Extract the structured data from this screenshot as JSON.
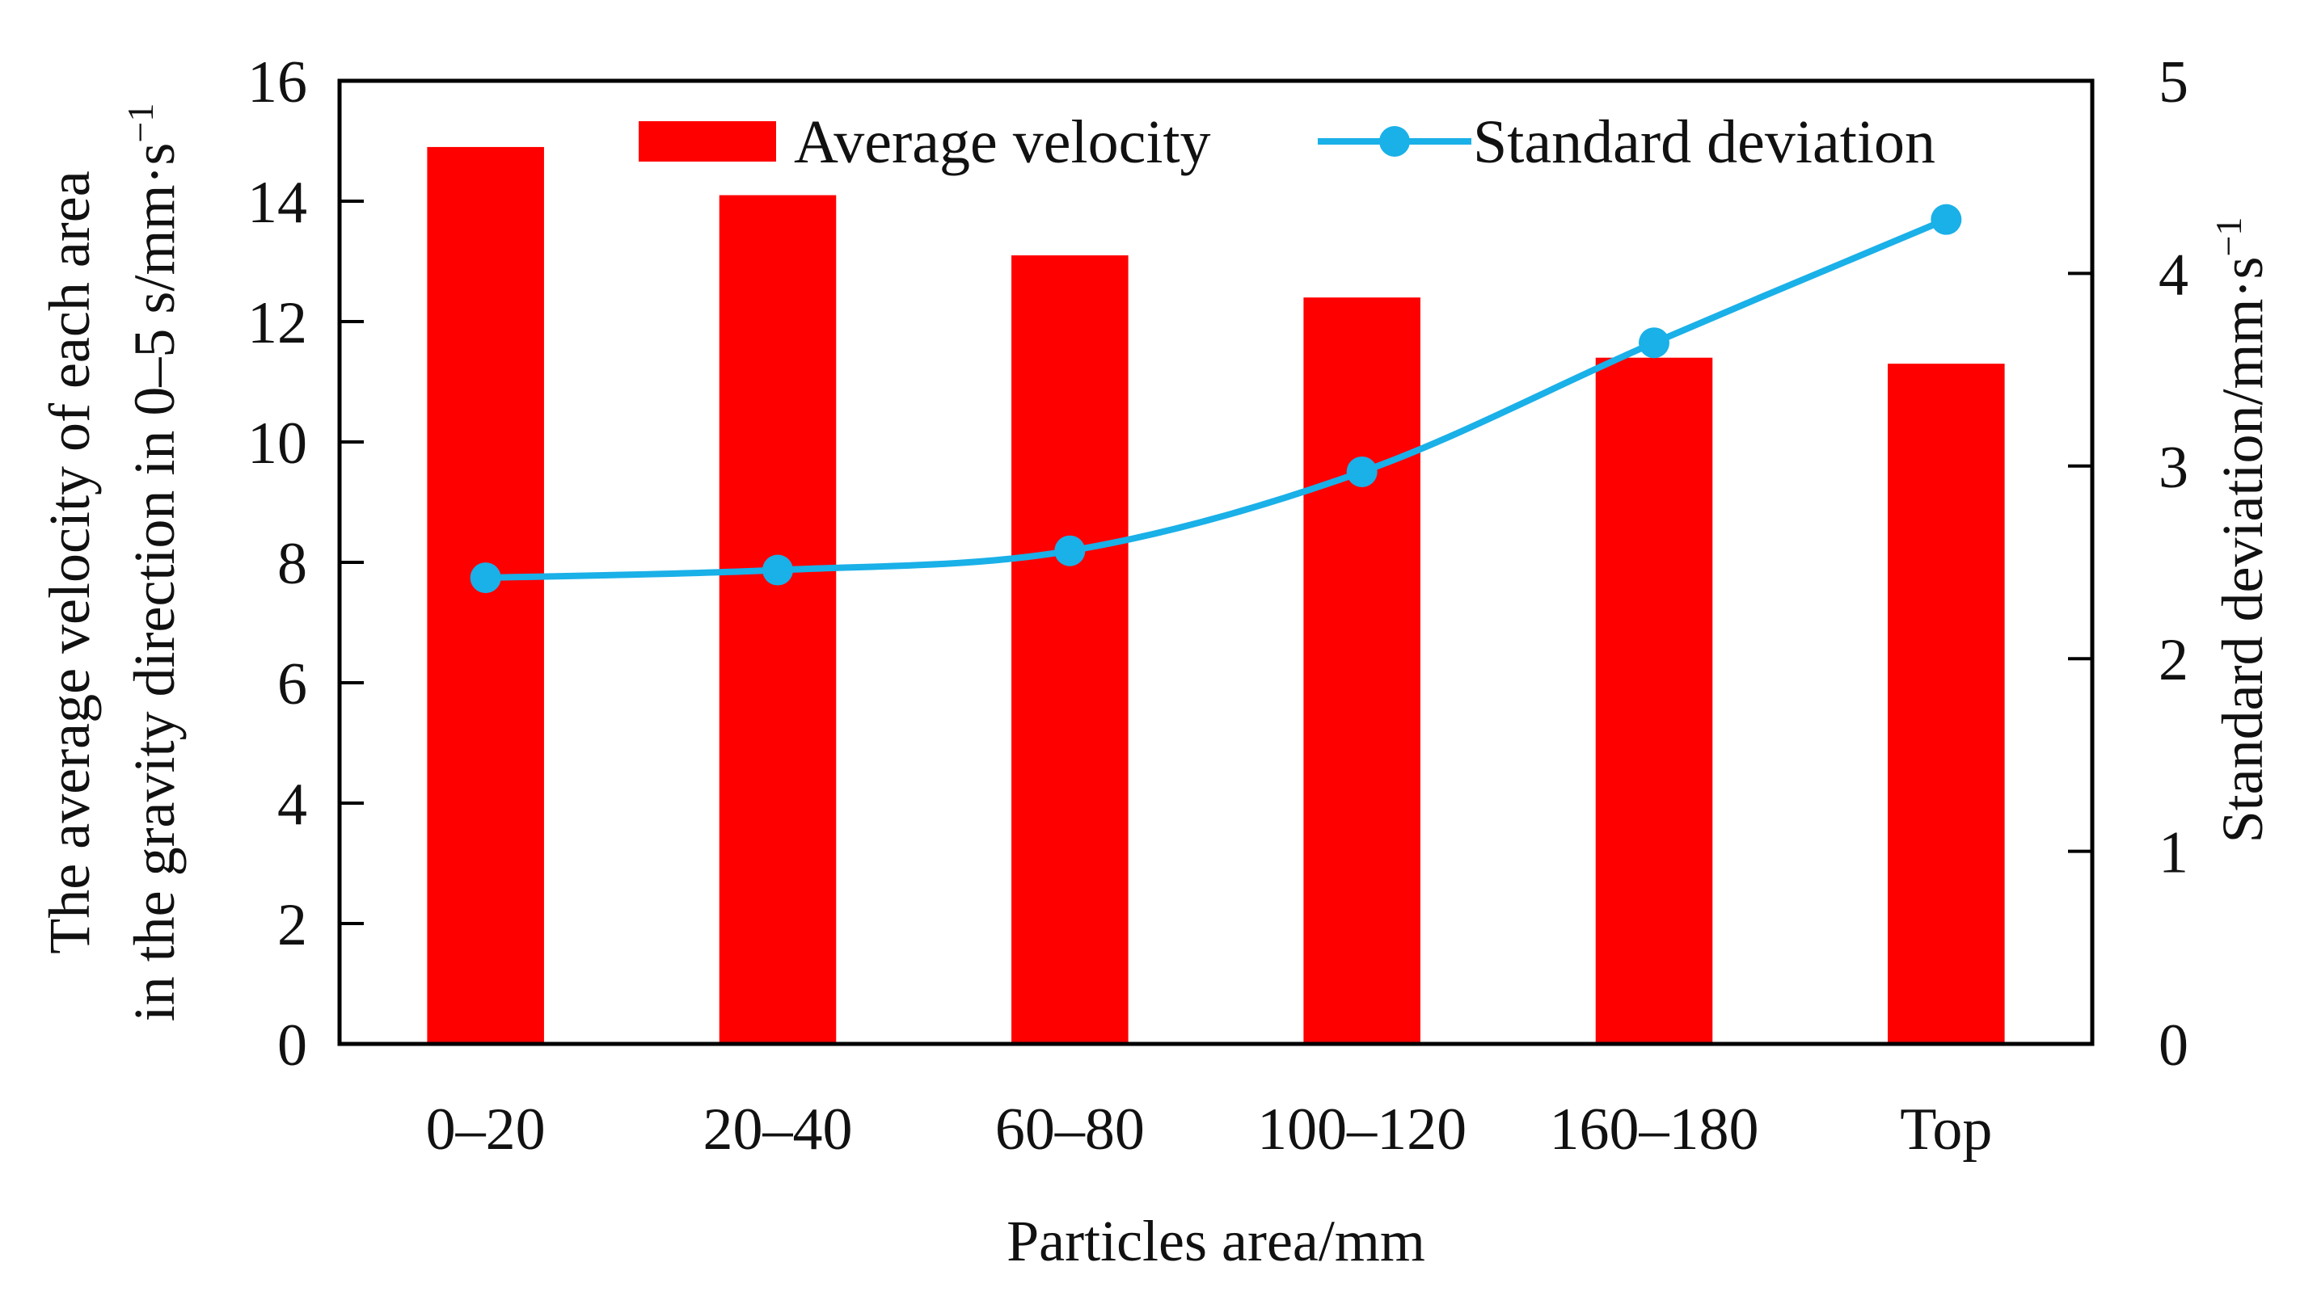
{
  "chart_data": {
    "type": "bar",
    "categories": [
      "0–20",
      "20–40",
      "60–80",
      "100–120",
      "160–180",
      "Top"
    ],
    "series": [
      {
        "name": "Average velocity",
        "kind": "bar",
        "axis": "left",
        "color": "#ff0000",
        "values": [
          14.9,
          14.1,
          13.1,
          12.4,
          11.4,
          11.3
        ]
      },
      {
        "name": "Standard deviation",
        "kind": "line",
        "axis": "right",
        "color": "#1ab0e8",
        "values": [
          2.42,
          2.46,
          2.56,
          2.97,
          3.64,
          4.28
        ]
      }
    ],
    "xlabel": "Particles area/mm",
    "ylabel_left": {
      "line1": "The average velocity of each area",
      "line2_main": "in the gravity direction in 0–5 s/mm·s",
      "line2_sup": "−1"
    },
    "ylabel_right": {
      "main": "Standard deviation/mm·s",
      "sup": "−1"
    },
    "ylim_left": [
      0,
      16
    ],
    "yticks_left": [
      "0",
      "2",
      "4",
      "6",
      "8",
      "10",
      "12",
      "14",
      "16"
    ],
    "ylim_right": [
      0,
      5
    ],
    "yticks_right": [
      "0",
      "1",
      "2",
      "3",
      "4",
      "5"
    ],
    "grid": false,
    "legend_position": "top-right"
  }
}
